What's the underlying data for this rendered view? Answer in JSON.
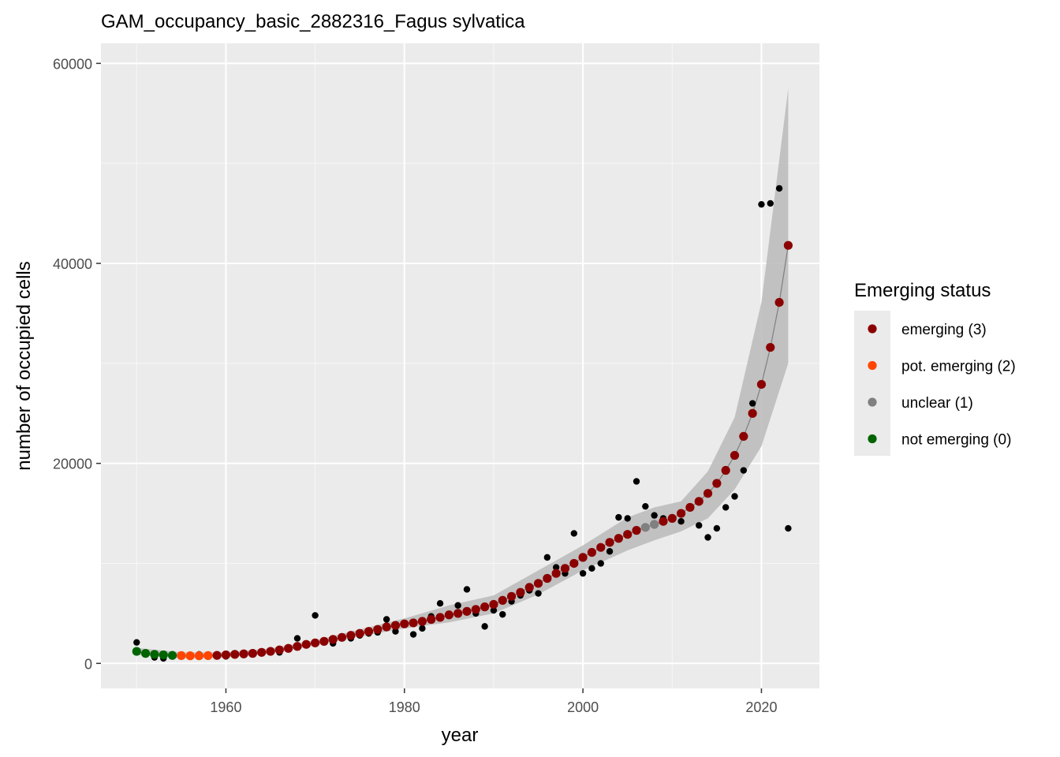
{
  "chart_data": {
    "type": "scatter",
    "title": "GAM_occupancy_basic_2882316_Fagus sylvatica",
    "xlabel": "year",
    "ylabel": "number of occupied cells",
    "xlim": [
      1946,
      2026.5
    ],
    "ylim": [
      -2500,
      62000
    ],
    "x_ticks": [
      1960,
      1980,
      2000,
      2020
    ],
    "y_ticks": [
      0,
      20000,
      40000,
      60000
    ],
    "x_tick_labels": [
      "1960",
      "1980",
      "2000",
      "2020"
    ],
    "y_tick_labels": [
      "0",
      "20000",
      "40000",
      "60000"
    ],
    "grid": true,
    "panel_background": "#ebebeb",
    "legend": {
      "title": "Emerging status",
      "position": "right",
      "entries": [
        {
          "label": "emerging (3)",
          "color": "#8b0000",
          "code": 3
        },
        {
          "label": "pot. emerging (2)",
          "color": "#ff4500",
          "code": 2
        },
        {
          "label": "unclear (1)",
          "color": "#808080",
          "code": 1
        },
        {
          "label": "not emerging (0)",
          "color": "#006400",
          "code": 0
        }
      ]
    },
    "observed": {
      "color": "#000000",
      "x": [
        1950,
        1951,
        1952,
        1953,
        1954,
        1955,
        1956,
        1957,
        1958,
        1959,
        1960,
        1961,
        1962,
        1963,
        1964,
        1965,
        1966,
        1967,
        1968,
        1969,
        1970,
        1971,
        1972,
        1973,
        1974,
        1975,
        1976,
        1977,
        1978,
        1979,
        1980,
        1981,
        1982,
        1983,
        1984,
        1985,
        1986,
        1987,
        1988,
        1989,
        1990,
        1991,
        1992,
        1993,
        1994,
        1995,
        1996,
        1997,
        1998,
        1999,
        2000,
        2001,
        2002,
        2003,
        2004,
        2005,
        2006,
        2007,
        2008,
        2009,
        2010,
        2011,
        2012,
        2013,
        2014,
        2015,
        2016,
        2017,
        2018,
        2019,
        2020,
        2021,
        2022,
        2023
      ],
      "y": [
        2100,
        900,
        600,
        500,
        700,
        800,
        700,
        900,
        800,
        700,
        700,
        1000,
        900,
        1100,
        1200,
        1300,
        1100,
        1500,
        2500,
        1800,
        4800,
        2200,
        2000,
        2700,
        2500,
        2800,
        3000,
        3100,
        4400,
        3200,
        3900,
        2900,
        3500,
        4700,
        6000,
        4900,
        5800,
        7400,
        5000,
        3700,
        5300,
        4900,
        6200,
        6800,
        7300,
        7000,
        10600,
        9600,
        9000,
        13000,
        9000,
        9500,
        10000,
        11200,
        14600,
        14500,
        18200,
        15700,
        14800,
        14500,
        14500,
        14200,
        15600,
        13800,
        12600,
        13500,
        15600,
        16700,
        19300,
        26000,
        45900,
        46000,
        47500,
        13500
      ]
    },
    "fitted": {
      "x": [
        1950,
        1951,
        1952,
        1953,
        1954,
        1955,
        1956,
        1957,
        1958,
        1959,
        1960,
        1961,
        1962,
        1963,
        1964,
        1965,
        1966,
        1967,
        1968,
        1969,
        1970,
        1971,
        1972,
        1973,
        1974,
        1975,
        1976,
        1977,
        1978,
        1979,
        1980,
        1981,
        1982,
        1983,
        1984,
        1985,
        1986,
        1987,
        1988,
        1989,
        1990,
        1991,
        1992,
        1993,
        1994,
        1995,
        1996,
        1997,
        1998,
        1999,
        2000,
        2001,
        2002,
        2003,
        2004,
        2005,
        2006,
        2007,
        2008,
        2009,
        2010,
        2011,
        2012,
        2013,
        2014,
        2015,
        2016,
        2017,
        2018,
        2019,
        2020,
        2021,
        2022,
        2023
      ],
      "y": [
        1200,
        1000,
        900,
        850,
        800,
        780,
        760,
        760,
        780,
        800,
        850,
        900,
        950,
        1000,
        1100,
        1200,
        1350,
        1500,
        1700,
        1900,
        2050,
        2200,
        2400,
        2600,
        2800,
        3000,
        3200,
        3400,
        3650,
        3800,
        3950,
        4050,
        4200,
        4400,
        4600,
        4850,
        5000,
        5200,
        5400,
        5650,
        5900,
        6300,
        6700,
        7100,
        7600,
        8000,
        8500,
        9000,
        9500,
        10000,
        10600,
        11100,
        11600,
        12100,
        12500,
        12900,
        13300,
        13600,
        13900,
        14200,
        14500,
        15000,
        15600,
        16200,
        17000,
        18000,
        19300,
        20800,
        22700,
        25000,
        27900,
        31600,
        36100,
        41800
      ],
      "status": [
        0,
        0,
        0,
        0,
        0,
        2,
        2,
        2,
        2,
        3,
        3,
        3,
        3,
        3,
        3,
        3,
        3,
        3,
        3,
        3,
        3,
        3,
        3,
        3,
        3,
        3,
        3,
        3,
        3,
        3,
        3,
        3,
        3,
        3,
        3,
        3,
        3,
        3,
        3,
        3,
        3,
        3,
        3,
        3,
        3,
        3,
        3,
        3,
        3,
        3,
        3,
        3,
        3,
        3,
        3,
        3,
        3,
        1,
        1,
        3,
        3,
        3,
        3,
        3,
        3,
        3,
        3,
        3,
        3,
        3,
        3,
        3,
        3,
        3
      ],
      "line_color": "#7f7f7f",
      "ci_color": "#bdbdbd",
      "ci_x": [
        1950,
        1955,
        1960,
        1965,
        1970,
        1975,
        1980,
        1985,
        1990,
        1995,
        2000,
        2005,
        2008,
        2011,
        2014,
        2017,
        2020,
        2023
      ],
      "ci_lower": [
        850,
        500,
        600,
        1000,
        1800,
        2700,
        3500,
        4100,
        5000,
        6900,
        9300,
        11300,
        12300,
        13200,
        14500,
        17400,
        21700,
        30000
      ],
      "ci_upper": [
        1550,
        1100,
        1100,
        1500,
        2300,
        3400,
        4500,
        5800,
        6800,
        9300,
        11800,
        14600,
        15600,
        16200,
        19200,
        24600,
        36100,
        57500
      ]
    }
  }
}
